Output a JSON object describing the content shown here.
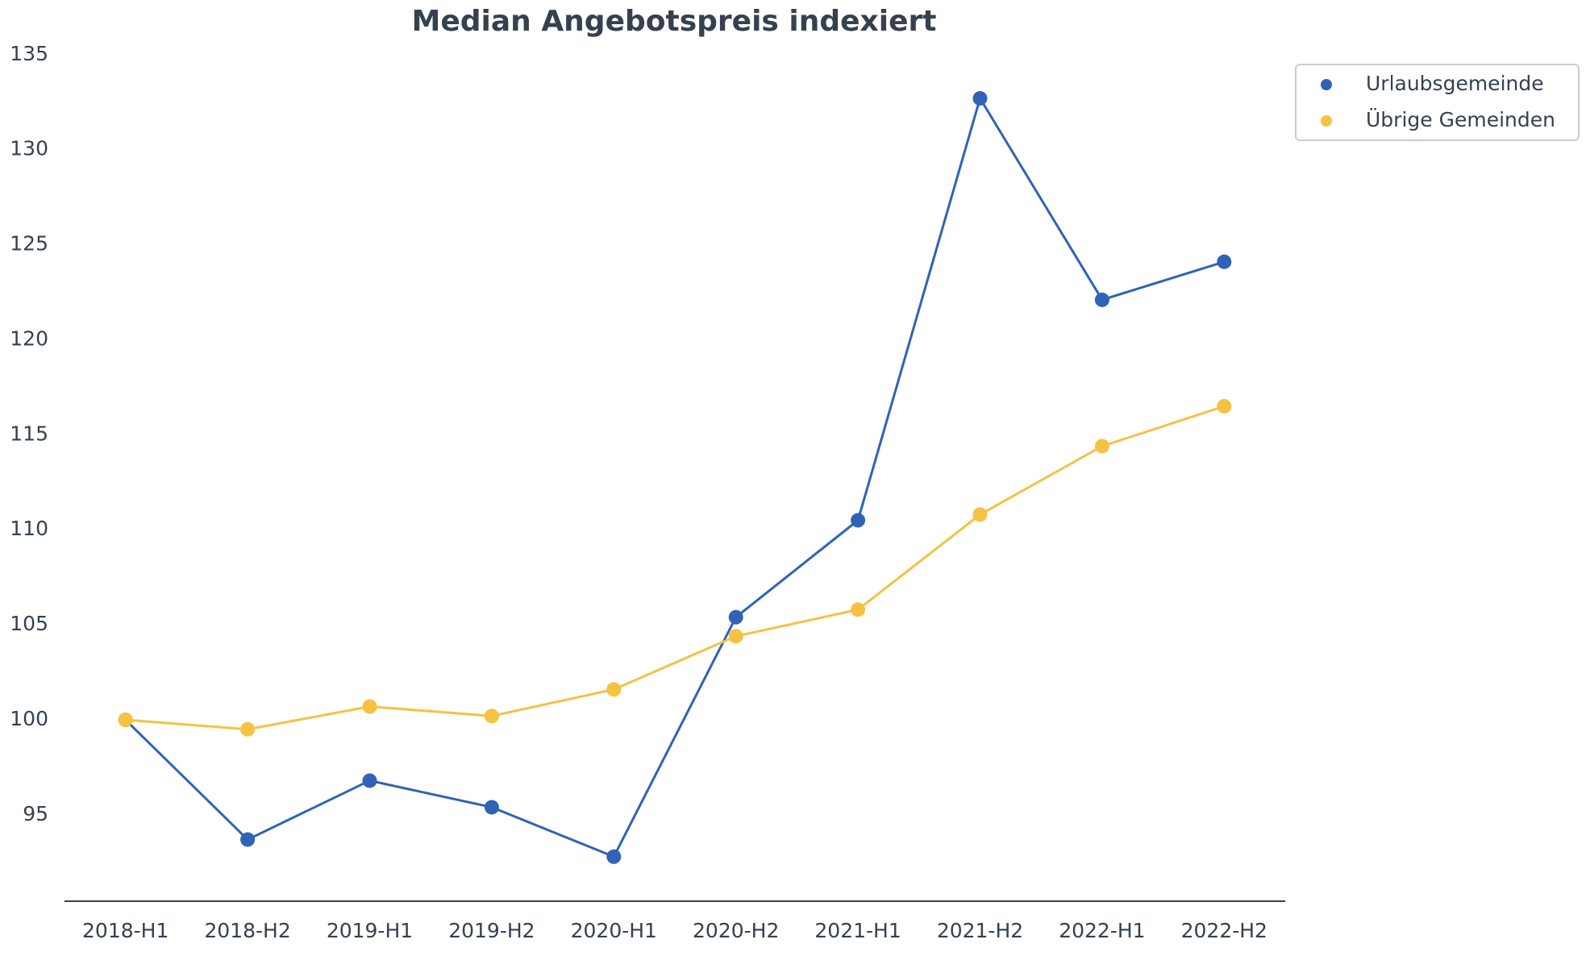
{
  "chart_data": {
    "type": "line",
    "title": "Median Angebotspreis indexiert",
    "categories": [
      "2018-H1",
      "2018-H2",
      "2019-H1",
      "2019-H2",
      "2020-H1",
      "2020-H2",
      "2021-H1",
      "2021-H2",
      "2022-H1",
      "2022-H2"
    ],
    "series": [
      {
        "name": "Urlaubsgemeinde",
        "color": "#2e63b8",
        "values": [
          100,
          93.7,
          96.8,
          95.4,
          92.8,
          105.4,
          110.5,
          132.7,
          122.1,
          124.1
        ]
      },
      {
        "name": "Übrige Gemeinden",
        "color": "#f5c242",
        "values": [
          100,
          99.5,
          100.7,
          100.2,
          101.6,
          104.4,
          105.8,
          110.8,
          114.4,
          116.5
        ]
      }
    ],
    "ylim": [
      90.5,
      135.5
    ],
    "yticks": [
      95,
      100,
      105,
      110,
      115,
      120,
      125,
      130,
      135
    ],
    "grid": false,
    "legend": "upper right"
  }
}
